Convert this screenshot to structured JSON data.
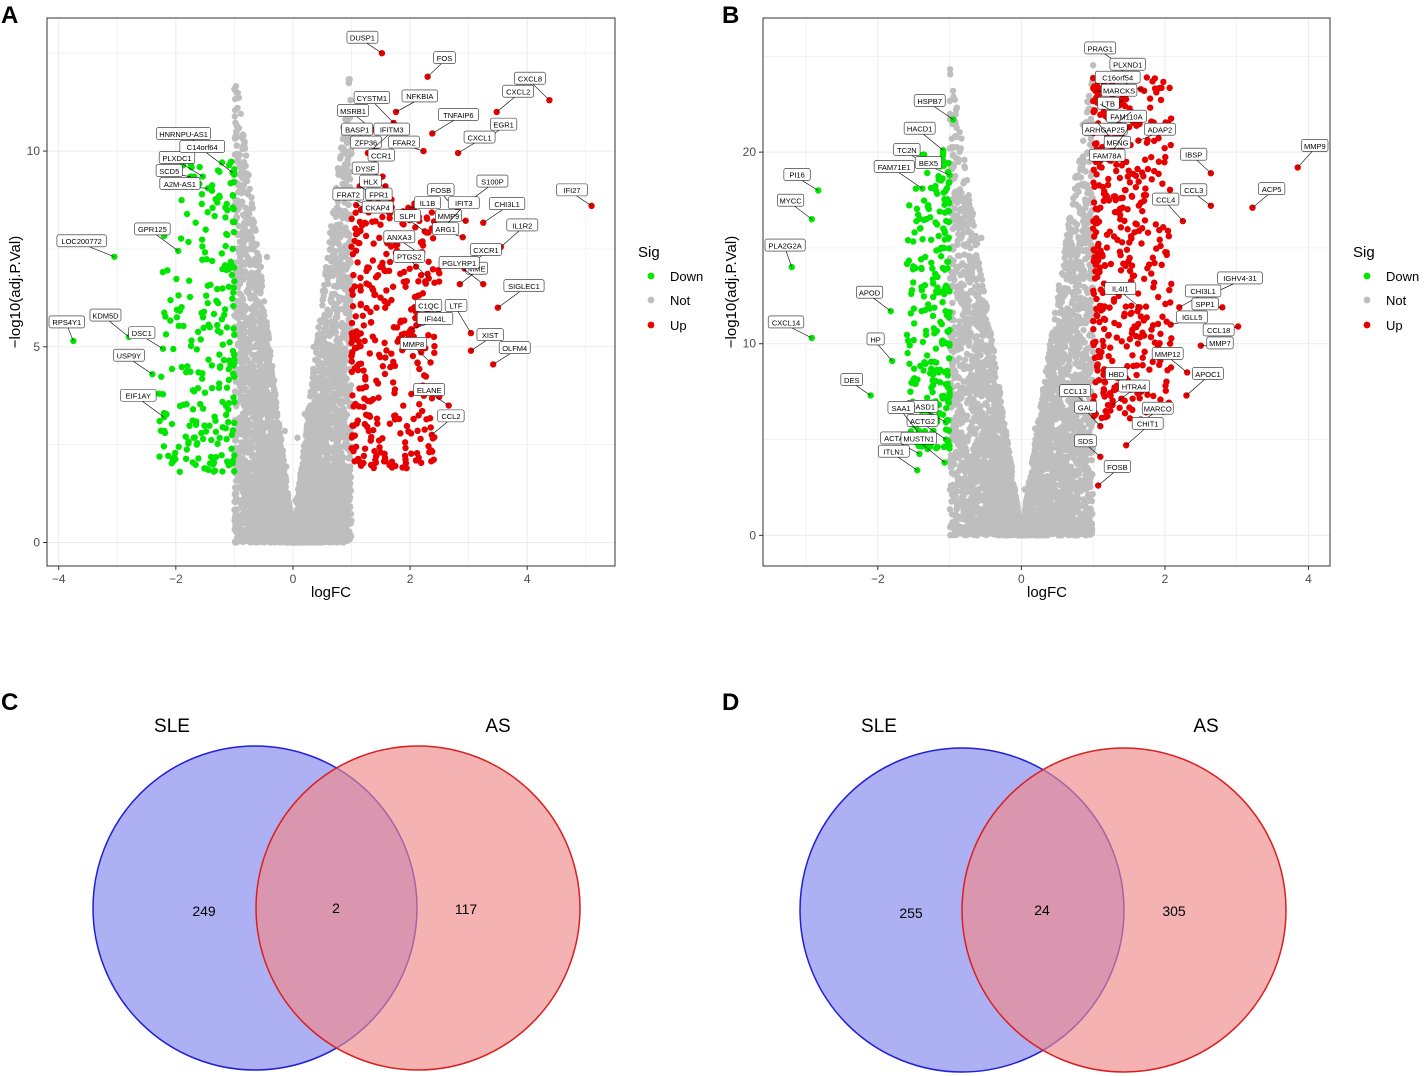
{
  "colors": {
    "down": "#00e600",
    "not": "#bebebe",
    "up": "#e60000",
    "sle_fill": "#8b8ff0",
    "sle_stroke": "#1f1fd9",
    "as_fill": "#f08888",
    "as_stroke": "#d91f1f",
    "panel_border": "#333333",
    "grid": "#ebebeb"
  },
  "panel_letters": [
    "A",
    "B",
    "C",
    "D"
  ],
  "chart_data": [
    {
      "panel": "A",
      "type": "scatter",
      "title": "",
      "xlabel": "logFC",
      "ylabel": "−log10(adj.P.Val)",
      "xlim": [
        -4.2,
        5.5
      ],
      "ylim": [
        -0.6,
        13.4
      ],
      "xticks": [
        -4,
        -2,
        0,
        2,
        4
      ],
      "yticks": [
        0,
        5,
        10
      ],
      "xtick_labels": [
        "−4",
        "−2",
        "0",
        "2",
        "4"
      ],
      "ytick_labels": [
        "0",
        "5",
        "10"
      ],
      "legend": {
        "title": "Sig",
        "position": "right",
        "entries": [
          "Down",
          "Not",
          "Up"
        ]
      },
      "background_point_ranges": {
        "down": {
          "x": [
            -2.3,
            -1.0
          ],
          "y": [
            1.8,
            9.8
          ],
          "count": 249
        },
        "up": {
          "x": [
            1.0,
            2.5
          ],
          "y": [
            1.9,
            8.8
          ],
          "count": 340
        },
        "not_count": 4200
      },
      "labeled_points": [
        {
          "gene": "HNRNPU-AS1",
          "x": -1.27,
          "y": 10.04,
          "sig": "down"
        },
        {
          "gene": "PLXDC1",
          "x": -1.54,
          "y": 9.35,
          "sig": "down"
        },
        {
          "gene": "C14orf64",
          "x": -1.03,
          "y": 9.45,
          "sig": "down"
        },
        {
          "gene": "SCD5",
          "x": -1.75,
          "y": 9.35,
          "sig": "down"
        },
        {
          "gene": "A2M-AS1",
          "x": -1.45,
          "y": 9.05,
          "sig": "down"
        },
        {
          "gene": "GPR125",
          "x": -1.96,
          "y": 7.45,
          "sig": "down"
        },
        {
          "gene": "LOC200772",
          "x": -3.05,
          "y": 7.3,
          "sig": "down"
        },
        {
          "gene": "RPS4Y1",
          "x": -3.75,
          "y": 5.15,
          "sig": "down"
        },
        {
          "gene": "KDM5D",
          "x": -2.8,
          "y": 5.25,
          "sig": "down"
        },
        {
          "gene": "DSC1",
          "x": -2.22,
          "y": 4.95,
          "sig": "down"
        },
        {
          "gene": "USP9Y",
          "x": -2.4,
          "y": 4.3,
          "sig": "down"
        },
        {
          "gene": "EIF1AY",
          "x": -2.2,
          "y": 3.2,
          "sig": "down"
        },
        {
          "gene": "DUSP1",
          "x": 1.52,
          "y": 12.5,
          "sig": "up"
        },
        {
          "gene": "FOS",
          "x": 2.3,
          "y": 11.9,
          "sig": "up"
        },
        {
          "gene": "CXCL8",
          "x": 4.38,
          "y": 11.3,
          "sig": "up"
        },
        {
          "gene": "NFKBIA",
          "x": 1.76,
          "y": 11.0,
          "sig": "up"
        },
        {
          "gene": "MSRB1",
          "x": 1.36,
          "y": 10.55,
          "sig": "up"
        },
        {
          "gene": "CXCL2",
          "x": 3.48,
          "y": 11.0,
          "sig": "up"
        },
        {
          "gene": "CYSTM1",
          "x": 1.72,
          "y": 10.72,
          "sig": "up"
        },
        {
          "gene": "TNFAIP6",
          "x": 2.38,
          "y": 10.45,
          "sig": "up"
        },
        {
          "gene": "BASP1",
          "x": 1.43,
          "y": 10.0,
          "sig": "up"
        },
        {
          "gene": "EGR1",
          "x": 3.27,
          "y": 10.28,
          "sig": "up"
        },
        {
          "gene": "ZFP36",
          "x": 1.58,
          "y": 9.95,
          "sig": "up"
        },
        {
          "gene": "IFITM3",
          "x": 1.28,
          "y": 9.95,
          "sig": "up"
        },
        {
          "gene": "FFAR2",
          "x": 2.23,
          "y": 10.0,
          "sig": "up"
        },
        {
          "gene": "CCR1",
          "x": 1.18,
          "y": 9.55,
          "sig": "up"
        },
        {
          "gene": "DYSF",
          "x": 1.53,
          "y": 9.35,
          "sig": "up"
        },
        {
          "gene": "CXCL1",
          "x": 2.82,
          "y": 9.95,
          "sig": "up"
        },
        {
          "gene": "HLX",
          "x": 1.58,
          "y": 9.1,
          "sig": "up"
        },
        {
          "gene": "FPR1",
          "x": 1.14,
          "y": 9.1,
          "sig": "up"
        },
        {
          "gene": "IFI27",
          "x": 5.1,
          "y": 8.6,
          "sig": "up"
        },
        {
          "gene": "S100P",
          "x": 3.04,
          "y": 8.75,
          "sig": "up"
        },
        {
          "gene": "FOSB",
          "x": 2.82,
          "y": 8.45,
          "sig": "up"
        },
        {
          "gene": "IL1B",
          "x": 1.97,
          "y": 8.55,
          "sig": "up"
        },
        {
          "gene": "FRAT2",
          "x": 1.28,
          "y": 8.62,
          "sig": "up"
        },
        {
          "gene": "CKAP4",
          "x": 1.08,
          "y": 8.62,
          "sig": "up"
        },
        {
          "gene": "MMP9",
          "x": 2.95,
          "y": 8.22,
          "sig": "up"
        },
        {
          "gene": "CHI3L1",
          "x": 3.25,
          "y": 8.17,
          "sig": "up"
        },
        {
          "gene": "SLPI",
          "x": 2.25,
          "y": 7.95,
          "sig": "up"
        },
        {
          "gene": "IFIT3",
          "x": 2.55,
          "y": 8.0,
          "sig": "up"
        },
        {
          "gene": "ARG1",
          "x": 2.9,
          "y": 7.8,
          "sig": "up"
        },
        {
          "gene": "IL1R2",
          "x": 3.55,
          "y": 7.55,
          "sig": "up"
        },
        {
          "gene": "ANXA3",
          "x": 2.15,
          "y": 7.4,
          "sig": "up"
        },
        {
          "gene": "CXCR1",
          "x": 2.93,
          "y": 7.0,
          "sig": "up"
        },
        {
          "gene": "PTGS2",
          "x": 2.32,
          "y": 6.75,
          "sig": "up"
        },
        {
          "gene": "MME",
          "x": 2.85,
          "y": 6.6,
          "sig": "up"
        },
        {
          "gene": "PGLYRP1",
          "x": 3.25,
          "y": 6.6,
          "sig": "up"
        },
        {
          "gene": "SIGLEC1",
          "x": 3.5,
          "y": 6.0,
          "sig": "up"
        },
        {
          "gene": "C1QC",
          "x": 2.61,
          "y": 5.65,
          "sig": "up"
        },
        {
          "gene": "IFI44L",
          "x": 2.02,
          "y": 5.45,
          "sig": "up"
        },
        {
          "gene": "LTF",
          "x": 3.04,
          "y": 5.35,
          "sig": "up"
        },
        {
          "gene": "XIST",
          "x": 3.04,
          "y": 4.9,
          "sig": "up"
        },
        {
          "gene": "MMP8",
          "x": 2.35,
          "y": 4.6,
          "sig": "up"
        },
        {
          "gene": "OLFM4",
          "x": 3.42,
          "y": 4.55,
          "sig": "up"
        },
        {
          "gene": "ELANE",
          "x": 2.66,
          "y": 3.5,
          "sig": "up"
        },
        {
          "gene": "CCL2",
          "x": 2.37,
          "y": 2.75,
          "sig": "up"
        }
      ]
    },
    {
      "panel": "B",
      "type": "scatter",
      "title": "",
      "xlabel": "logFC",
      "ylabel": "−log10(adj.P.Val)",
      "xlim": [
        -3.6,
        4.3
      ],
      "ylim": [
        -1.6,
        27.0
      ],
      "xticks": [
        -2,
        0,
        2,
        4
      ],
      "yticks": [
        0,
        10,
        20
      ],
      "xtick_labels": [
        "−2",
        "0",
        "2",
        "4"
      ],
      "ytick_labels": [
        "0",
        "10",
        "20"
      ],
      "legend": {
        "title": "Sig",
        "position": "right",
        "entries": [
          "Down",
          "Not",
          "Up"
        ]
      },
      "background_point_ranges": {
        "down": {
          "x": [
            -1.6,
            -1.0
          ],
          "y": [
            4.5,
            20.0
          ],
          "count": 255
        },
        "up": {
          "x": [
            1.0,
            2.1
          ],
          "y": [
            6.0,
            24.0
          ],
          "count": 430
        },
        "not_count": 4200
      },
      "labeled_points": [
        {
          "gene": "PI16",
          "x": -2.83,
          "y": 18.0,
          "sig": "down"
        },
        {
          "gene": "MYCC",
          "x": -2.92,
          "y": 16.5,
          "sig": "down"
        },
        {
          "gene": "PLA2G2A",
          "x": -3.2,
          "y": 14.0,
          "sig": "down"
        },
        {
          "gene": "CXCL14",
          "x": -2.92,
          "y": 10.3,
          "sig": "down"
        },
        {
          "gene": "APOD",
          "x": -1.82,
          "y": 11.7,
          "sig": "down"
        },
        {
          "gene": "HP",
          "x": -1.8,
          "y": 9.1,
          "sig": "down"
        },
        {
          "gene": "DES",
          "x": -2.1,
          "y": 7.3,
          "sig": "down"
        },
        {
          "gene": "HSPB7",
          "x": -0.95,
          "y": 21.7,
          "sig": "down"
        },
        {
          "gene": "HACD1",
          "x": -1.09,
          "y": 20.1,
          "sig": "down"
        },
        {
          "gene": "TC2N",
          "x": -1.3,
          "y": 19.3,
          "sig": "down"
        },
        {
          "gene": "BEX5",
          "x": -1.0,
          "y": 18.8,
          "sig": "down"
        },
        {
          "gene": "FAM71E1",
          "x": -1.38,
          "y": 18.1,
          "sig": "down"
        },
        {
          "gene": "RASD1",
          "x": -1.05,
          "y": 5.9,
          "sig": "down"
        },
        {
          "gene": "ACTG2",
          "x": -1.05,
          "y": 5.0,
          "sig": "down"
        },
        {
          "gene": "SAA1",
          "x": -1.38,
          "y": 5.1,
          "sig": "down"
        },
        {
          "gene": "ACTA1",
          "x": -1.42,
          "y": 4.25,
          "sig": "down"
        },
        {
          "gene": "ITLN1",
          "x": -1.45,
          "y": 3.4,
          "sig": "down"
        },
        {
          "gene": "MUSTN1",
          "x": -1.07,
          "y": 3.8,
          "sig": "down"
        },
        {
          "gene": "PRAG1",
          "x": 1.37,
          "y": 24.6,
          "sig": "up"
        },
        {
          "gene": "PLXND1",
          "x": 1.15,
          "y": 23.6,
          "sig": "up"
        },
        {
          "gene": "C16orf54",
          "x": 1.71,
          "y": 23.2,
          "sig": "up"
        },
        {
          "gene": "MARCKS",
          "x": 1.03,
          "y": 23.2,
          "sig": "up"
        },
        {
          "gene": "LTB",
          "x": 1.42,
          "y": 22.7,
          "sig": "up"
        },
        {
          "gene": "FAM110A",
          "x": 1.1,
          "y": 22.5,
          "sig": "up"
        },
        {
          "gene": "ARHGAP25",
          "x": 1.53,
          "y": 22.1,
          "sig": "up"
        },
        {
          "gene": "MFNG",
          "x": 1.07,
          "y": 21.5,
          "sig": "up"
        },
        {
          "gene": "FAM78A",
          "x": 1.5,
          "y": 21.3,
          "sig": "up"
        },
        {
          "gene": "ADAP2",
          "x": 1.63,
          "y": 20.6,
          "sig": "up"
        },
        {
          "gene": "IBSP",
          "x": 2.64,
          "y": 18.9,
          "sig": "up"
        },
        {
          "gene": "MMP9",
          "x": 3.85,
          "y": 19.2,
          "sig": "up"
        },
        {
          "gene": "CCL3",
          "x": 2.64,
          "y": 17.2,
          "sig": "up"
        },
        {
          "gene": "ACP5",
          "x": 3.22,
          "y": 17.1,
          "sig": "up"
        },
        {
          "gene": "CCL4",
          "x": 2.25,
          "y": 16.4,
          "sig": "up"
        },
        {
          "gene": "IGHV4-31",
          "x": 2.65,
          "y": 12.6,
          "sig": "up"
        },
        {
          "gene": "IL4I1",
          "x": 1.65,
          "y": 11.9,
          "sig": "up"
        },
        {
          "gene": "CHI3L1",
          "x": 2.2,
          "y": 11.9,
          "sig": "up"
        },
        {
          "gene": "SPP1",
          "x": 2.8,
          "y": 11.9,
          "sig": "up"
        },
        {
          "gene": "IGLL5",
          "x": 2.08,
          "y": 11.0,
          "sig": "up"
        },
        {
          "gene": "CCL18",
          "x": 3.02,
          "y": 10.9,
          "sig": "up"
        },
        {
          "gene": "MMP7",
          "x": 2.5,
          "y": 9.9,
          "sig": "up"
        },
        {
          "gene": "MMP12",
          "x": 2.31,
          "y": 8.5,
          "sig": "up"
        },
        {
          "gene": "APOC1",
          "x": 2.3,
          "y": 7.3,
          "sig": "up"
        },
        {
          "gene": "HBD",
          "x": 1.53,
          "y": 7.6,
          "sig": "up"
        },
        {
          "gene": "HTRA4",
          "x": 1.27,
          "y": 6.8,
          "sig": "up"
        },
        {
          "gene": "CCL13",
          "x": 1.02,
          "y": 6.4,
          "sig": "up"
        },
        {
          "gene": "MARCO",
          "x": 1.6,
          "y": 5.8,
          "sig": "up"
        },
        {
          "gene": "GAL",
          "x": 1.1,
          "y": 5.7,
          "sig": "up"
        },
        {
          "gene": "CHIT1",
          "x": 1.46,
          "y": 4.7,
          "sig": "up"
        },
        {
          "gene": "SDS",
          "x": 1.1,
          "y": 4.1,
          "sig": "up"
        },
        {
          "gene": "FOSB",
          "x": 1.07,
          "y": 2.6,
          "sig": "up"
        }
      ]
    },
    {
      "panel": "C",
      "type": "venn",
      "sets": [
        {
          "name": "SLE",
          "only": 249
        },
        {
          "name": "AS",
          "only": 117
        }
      ],
      "intersection": 2
    },
    {
      "panel": "D",
      "type": "venn",
      "sets": [
        {
          "name": "SLE",
          "only": 255
        },
        {
          "name": "AS",
          "only": 305
        }
      ],
      "intersection": 24
    }
  ]
}
